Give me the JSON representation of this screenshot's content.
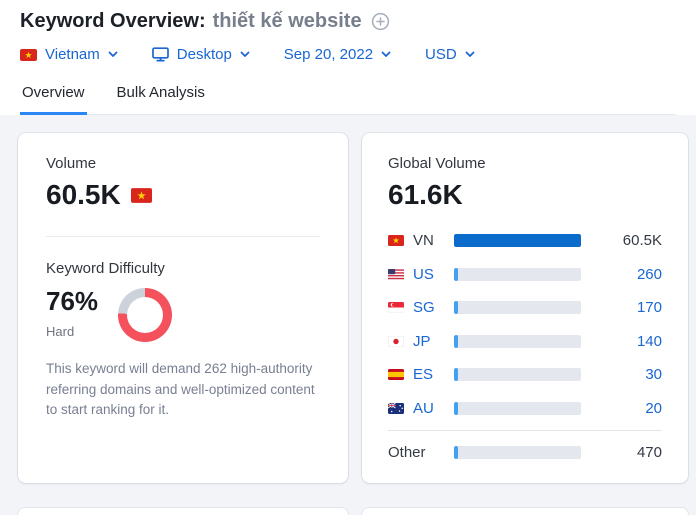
{
  "header": {
    "title": "Keyword Overview:",
    "keyword": "thiết kế website",
    "filters": {
      "country": "Vietnam",
      "device": "Desktop",
      "date": "Sep 20, 2022",
      "currency": "USD"
    },
    "tabs": [
      {
        "label": "Overview",
        "active": true
      },
      {
        "label": "Bulk Analysis",
        "active": false
      }
    ]
  },
  "volume_card": {
    "label": "Volume",
    "value": "60.5K",
    "kd": {
      "label": "Keyword Difficulty",
      "percent_text": "76%",
      "percent": 76,
      "level": "Hard",
      "description": "This keyword will demand 262 high-authority referring domains and well-optimized content to start ranking for it."
    }
  },
  "global_card": {
    "label": "Global Volume",
    "value": "61.6K",
    "rows": [
      {
        "code": "VN",
        "value": "60.5K",
        "bar_pct": 100
      },
      {
        "code": "US",
        "value": "260",
        "bar_pct": 3.5
      },
      {
        "code": "SG",
        "value": "170",
        "bar_pct": 3.5
      },
      {
        "code": "JP",
        "value": "140",
        "bar_pct": 3.5
      },
      {
        "code": "ES",
        "value": "30",
        "bar_pct": 3.5
      },
      {
        "code": "AU",
        "value": "20",
        "bar_pct": 3.5
      },
      {
        "code": "Other",
        "value": "470",
        "bar_pct": 3.5
      }
    ]
  },
  "chart_data": {
    "type": "bar",
    "title": "Global Volume by country",
    "categories": [
      "VN",
      "US",
      "SG",
      "JP",
      "ES",
      "AU",
      "Other"
    ],
    "values": [
      60500,
      260,
      170,
      140,
      30,
      20,
      470
    ]
  },
  "colors": {
    "link_blue": "#1a66d2",
    "tab_underline": "#2b87f5",
    "bar_blue": "#0b6bcb",
    "bar_sliver": "#41a0ef",
    "bar_track": "#e4e8ee",
    "kd_red": "#f4515c",
    "kd_track": "#ccd2da",
    "page_bg": "#f2f4f8",
    "card_bg": "#ffffff"
  }
}
